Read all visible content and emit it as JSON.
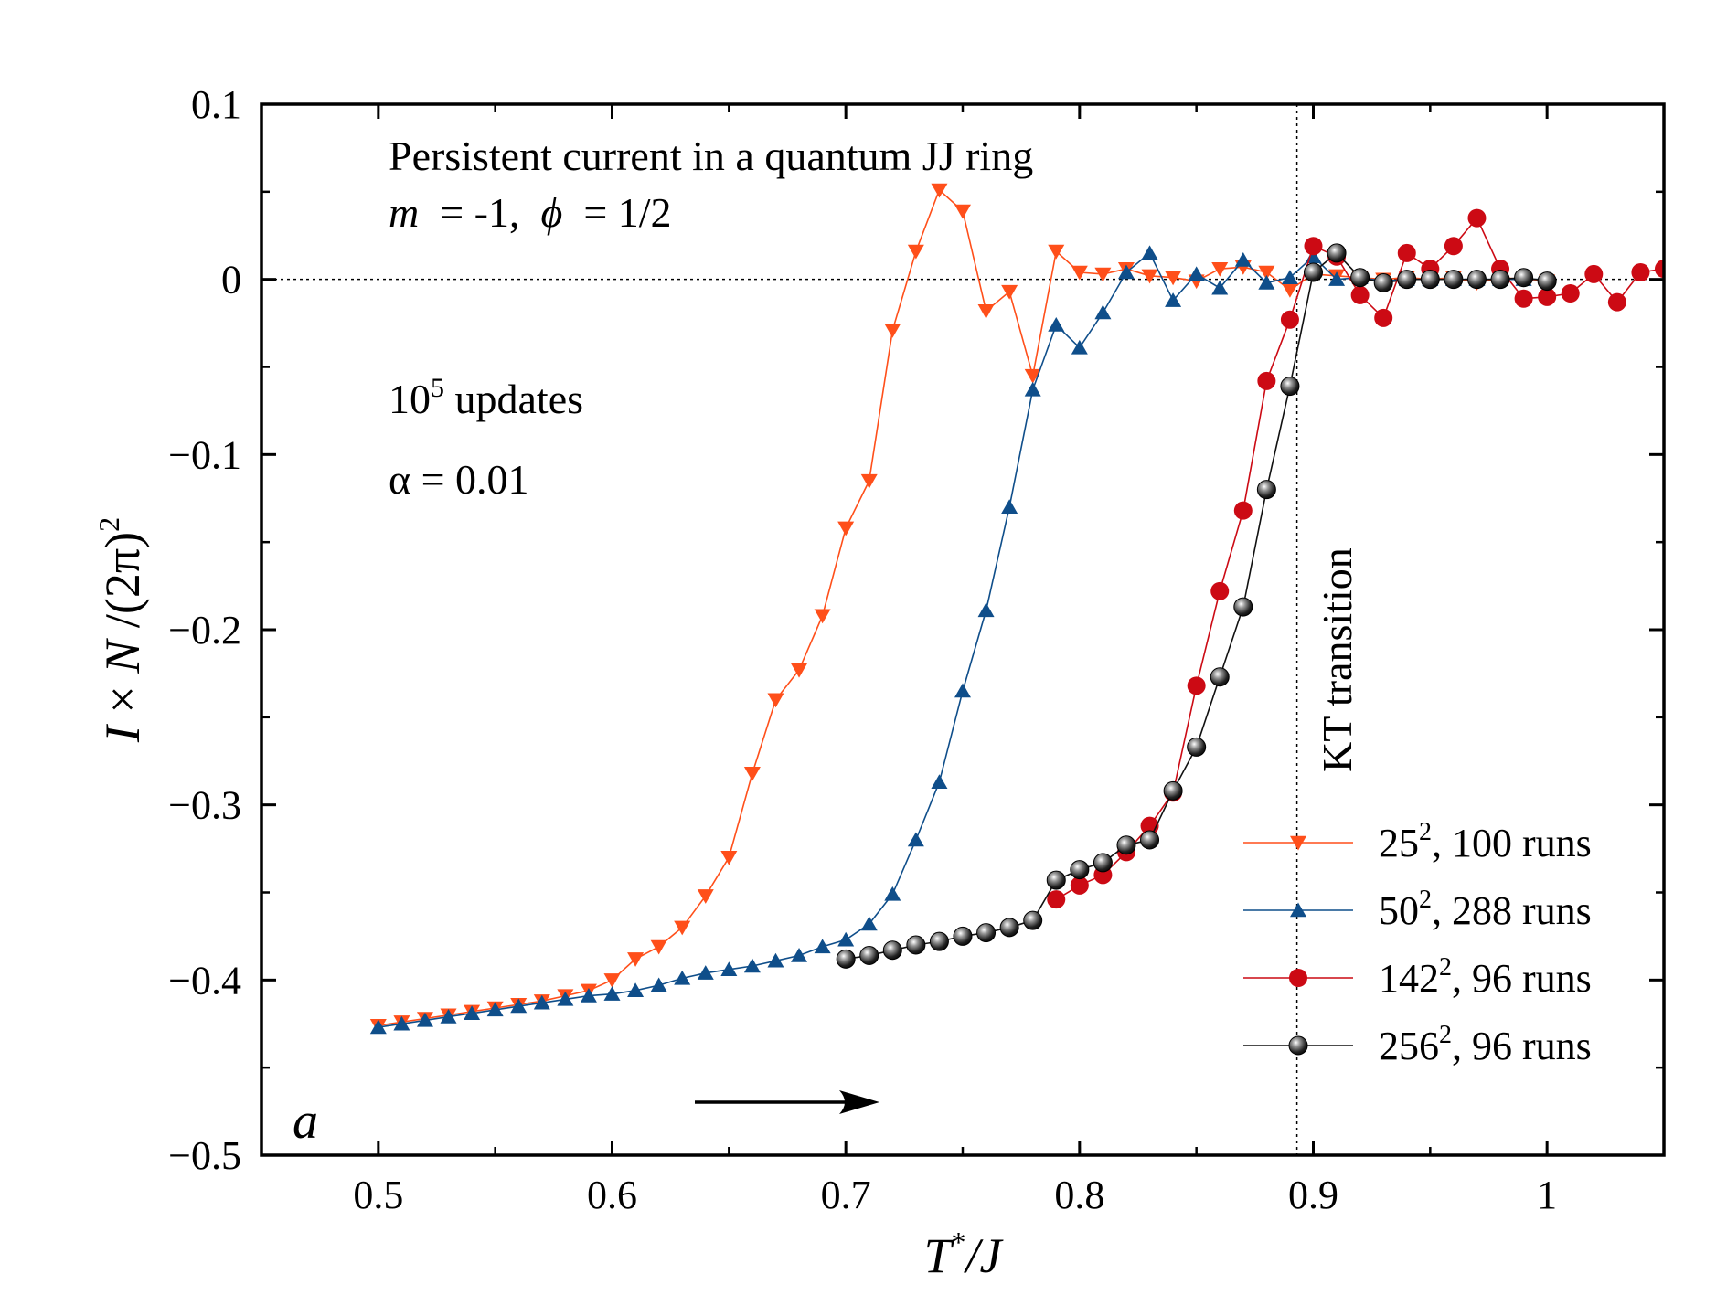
{
  "chart_data": {
    "type": "line",
    "title": "Persistent current in a quantum JJ ring",
    "params": {
      "m": "m",
      "m_value": "= -1,",
      "phi": "ϕ",
      "phi_value": "= 1/2"
    },
    "updates": {
      "base": "10",
      "exp": "5",
      "suffix": " updates"
    },
    "alpha_text": "α = 0.01",
    "panel_label": "a",
    "kt_label": "KT transition",
    "kt_x": 0.893,
    "xlabel": {
      "T": "T",
      "star": "*",
      "rest": "/J"
    },
    "ylabel": {
      "I": "I",
      "times": " × ",
      "N": "N",
      "rest": " /(2π)",
      "sq": "2"
    },
    "xlim": [
      0.45,
      1.05
    ],
    "ylim": [
      -0.5,
      0.1
    ],
    "xticks": [
      0.5,
      0.6,
      0.7,
      0.8,
      0.9,
      1.0
    ],
    "xtick_labels": [
      "0.5",
      "0.6",
      "0.7",
      "0.8",
      "0.9",
      "1"
    ],
    "yticks": [
      0.1,
      0,
      -0.1,
      -0.2,
      -0.3,
      -0.4,
      -0.5
    ],
    "ytick_labels": [
      "0.1",
      "0",
      "−0.1",
      "−0.2",
      "−0.3",
      "−0.4",
      "−0.5"
    ],
    "legend_position": "bottom-right",
    "series": [
      {
        "key": "s25",
        "name_base": "25",
        "name_exp": "2",
        "name_rest": ", 100 runs",
        "color": "#ff4f1a",
        "marker": "triangle-down",
        "x": [
          0.5,
          0.51,
          0.52,
          0.53,
          0.54,
          0.55,
          0.56,
          0.57,
          0.58,
          0.59,
          0.6,
          0.61,
          0.62,
          0.63,
          0.64,
          0.65,
          0.66,
          0.67,
          0.68,
          0.69,
          0.7,
          0.71,
          0.72,
          0.73,
          0.74,
          0.75,
          0.76,
          0.77,
          0.78,
          0.79,
          0.8,
          0.81,
          0.82,
          0.83,
          0.84,
          0.85,
          0.86,
          0.87,
          0.88,
          0.89,
          0.9,
          0.91,
          0.92,
          0.93,
          0.94,
          0.95,
          0.96,
          0.97,
          0.98,
          0.99,
          1.0
        ],
        "y": [
          -0.426,
          -0.424,
          -0.422,
          -0.42,
          -0.418,
          -0.416,
          -0.414,
          -0.412,
          -0.409,
          -0.406,
          -0.4,
          -0.388,
          -0.381,
          -0.37,
          -0.352,
          -0.33,
          -0.282,
          -0.24,
          -0.223,
          -0.192,
          -0.142,
          -0.115,
          -0.029,
          0.016,
          0.051,
          0.039,
          -0.018,
          -0.007,
          -0.055,
          0.016,
          0.004,
          0.003,
          0.006,
          0.002,
          0.001,
          -0.001,
          0.006,
          0.007,
          0.004,
          -0.006,
          0.003,
          0.002,
          0.001,
          0.0,
          0.001,
          0.0,
          0.001,
          -0.002,
          0.001,
          0.0,
          -0.001
        ]
      },
      {
        "key": "s50",
        "name_base": "50",
        "name_exp": "2",
        "name_rest": ", 288 runs",
        "color": "#0f4e8a",
        "marker": "triangle-up",
        "x": [
          0.5,
          0.51,
          0.52,
          0.53,
          0.54,
          0.55,
          0.56,
          0.57,
          0.58,
          0.59,
          0.6,
          0.61,
          0.62,
          0.63,
          0.64,
          0.65,
          0.66,
          0.67,
          0.68,
          0.69,
          0.7,
          0.71,
          0.72,
          0.73,
          0.74,
          0.75,
          0.76,
          0.77,
          0.78,
          0.79,
          0.8,
          0.81,
          0.82,
          0.83,
          0.84,
          0.85,
          0.86,
          0.87,
          0.88,
          0.89,
          0.9,
          0.91,
          0.92,
          0.93,
          0.94,
          0.95,
          0.96,
          0.97,
          0.98,
          0.99,
          1.0
        ],
        "y": [
          -0.427,
          -0.425,
          -0.423,
          -0.421,
          -0.419,
          -0.417,
          -0.415,
          -0.413,
          -0.411,
          -0.409,
          -0.408,
          -0.406,
          -0.403,
          -0.399,
          -0.396,
          -0.394,
          -0.392,
          -0.389,
          -0.386,
          -0.381,
          -0.377,
          -0.368,
          -0.351,
          -0.32,
          -0.287,
          -0.235,
          -0.189,
          -0.13,
          -0.063,
          -0.026,
          -0.039,
          -0.019,
          0.004,
          0.015,
          -0.012,
          0.003,
          -0.005,
          0.011,
          -0.002,
          0.001,
          0.013,
          0.0,
          0.001,
          -0.001,
          0.0,
          0.0,
          0.0,
          0.0,
          0.0,
          0.0,
          0.0
        ]
      },
      {
        "key": "s142",
        "name_base": "142",
        "name_exp": "2",
        "name_rest": ", 96 runs",
        "color": "#cc0a14",
        "marker": "circle",
        "x": [
          0.79,
          0.8,
          0.81,
          0.82,
          0.83,
          0.84,
          0.85,
          0.86,
          0.87,
          0.88,
          0.89,
          0.9,
          0.91,
          0.92,
          0.93,
          0.94,
          0.95,
          0.96,
          0.97,
          0.98,
          0.99,
          1.0,
          1.01,
          1.02,
          1.03,
          1.04,
          1.05
        ],
        "y": [
          -0.354,
          -0.346,
          -0.34,
          -0.327,
          -0.312,
          -0.293,
          -0.232,
          -0.178,
          -0.132,
          -0.058,
          -0.023,
          0.019,
          0.013,
          -0.009,
          -0.022,
          0.015,
          0.006,
          0.019,
          0.035,
          0.006,
          -0.011,
          -0.01,
          -0.008,
          0.003,
          -0.013,
          0.004,
          0.006
        ]
      },
      {
        "key": "s256",
        "name_base": "256",
        "name_exp": "2",
        "name_rest": ", 96 runs",
        "color": "#111111",
        "marker": "sphere",
        "x": [
          0.7,
          0.71,
          0.72,
          0.73,
          0.74,
          0.75,
          0.76,
          0.77,
          0.78,
          0.79,
          0.8,
          0.81,
          0.82,
          0.83,
          0.84,
          0.85,
          0.86,
          0.87,
          0.88,
          0.89,
          0.9,
          0.91,
          0.92,
          0.93,
          0.94,
          0.95,
          0.96,
          0.97,
          0.98,
          0.99,
          1.0
        ],
        "y": [
          -0.388,
          -0.386,
          -0.383,
          -0.38,
          -0.378,
          -0.375,
          -0.373,
          -0.37,
          -0.366,
          -0.343,
          -0.337,
          -0.333,
          -0.323,
          -0.32,
          -0.292,
          -0.267,
          -0.227,
          -0.187,
          -0.12,
          -0.061,
          0.004,
          0.015,
          0.001,
          -0.002,
          0.0,
          0.0,
          0.0,
          0.0,
          0.0,
          0.001,
          -0.001
        ]
      }
    ]
  }
}
